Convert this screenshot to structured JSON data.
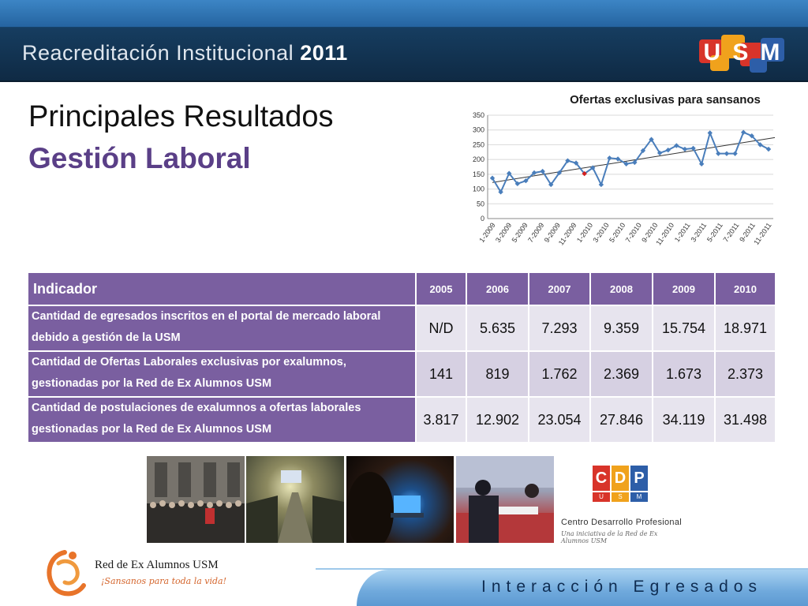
{
  "header": {
    "title": "Reacreditación Institucional",
    "year": "2011",
    "logo_text": "USM"
  },
  "titles": {
    "line1": "Principales Resultados",
    "line2": "Gestión Laboral"
  },
  "chart_data": {
    "type": "line",
    "title": "Ofertas exclusivas para sansanos",
    "xlabel": "",
    "ylabel": "",
    "ylim": [
      0,
      350
    ],
    "yticks": [
      "0",
      "50",
      "100",
      "150",
      "200",
      "250",
      "300",
      "350"
    ],
    "xtick_labels": [
      "1-2009",
      "3-2009",
      "5-2009",
      "7-2009",
      "9-2009",
      "11-2009",
      "1-2010",
      "3-2010",
      "5-2010",
      "7-2010",
      "9-2010",
      "11-2010",
      "1-2011",
      "3-2011",
      "5-2011",
      "7-2011",
      "9-2011",
      "11-2011"
    ],
    "grid": true,
    "trendline": true,
    "series_color": "#4a7ebb",
    "trend_color": "#333333",
    "highlight_color": "#d12020",
    "highlight_index": 11,
    "values": [
      137,
      90,
      153,
      118,
      128,
      155,
      160,
      115,
      155,
      196,
      188,
      152,
      172,
      115,
      205,
      202,
      185,
      190,
      230,
      268,
      222,
      232,
      247,
      235,
      238,
      185,
      290,
      220,
      220,
      220,
      292,
      280,
      250,
      235
    ]
  },
  "table": {
    "header_label": "Indicador",
    "years": [
      "2005",
      "2006",
      "2007",
      "2008",
      "2009",
      "2010"
    ],
    "rows": [
      {
        "label": "Cantidad de egresados inscritos en el portal de mercado laboral debido a gestión  de la USM",
        "values": [
          "N/D",
          "5.635",
          "7.293",
          "9.359",
          "15.754",
          "18.971"
        ]
      },
      {
        "label": "Cantidad de Ofertas Laborales exclusivas por exalumnos, gestionadas por la Red de Ex Alumnos USM",
        "values": [
          "141",
          "819",
          "1.762",
          "2.369",
          "1.673",
          "2.373"
        ]
      },
      {
        "label": "Cantidad de postulaciones de exalumnos a ofertas laborales gestionadas por la Red de Ex Alumnos USM",
        "values": [
          "3.817",
          "12.902",
          "23.054",
          "27.846",
          "34.119",
          "31.498"
        ]
      }
    ]
  },
  "cdp": {
    "letters": [
      "C",
      "D",
      "P"
    ],
    "sub_letters": [
      "U",
      "S",
      "M"
    ],
    "name": "Centro Desarrollo Profesional",
    "tagline": "Una iniciativa de la Red de Ex Alumnos USM",
    "colors": [
      "#d8342a",
      "#f0a21c",
      "#2d5ea8"
    ]
  },
  "footer": {
    "org_name": "Red de Ex Alumnos USM",
    "org_tagline": "¡Sansanos para toda la vida!",
    "section": "Interacción Egresados"
  }
}
